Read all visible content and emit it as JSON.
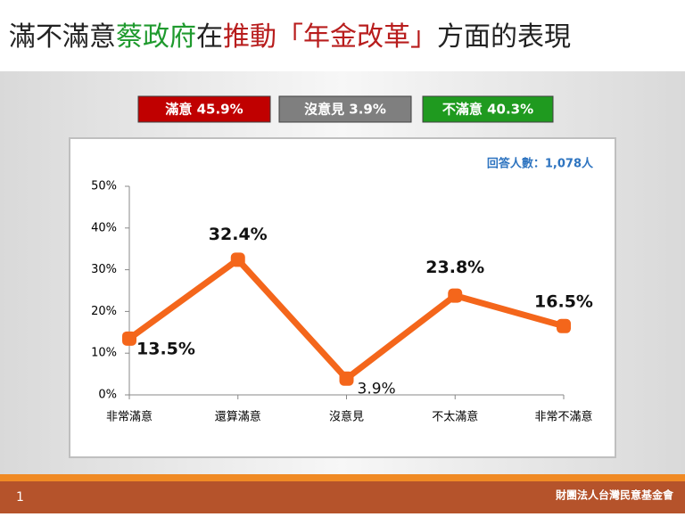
{
  "chart_data": {
    "type": "line",
    "title_parts": [
      {
        "text": "滿不滿意",
        "color": "#222222"
      },
      {
        "text": "蔡政府",
        "color": "#1f9a2e"
      },
      {
        "text": "在",
        "color": "#222222"
      },
      {
        "text": "推動「年金改革」",
        "color": "#b81d1d"
      },
      {
        "text": "方面的表現",
        "color": "#222222"
      }
    ],
    "summary": [
      {
        "text": "滿意 45.9%",
        "color": "#c00000"
      },
      {
        "text": "沒意見 3.9%",
        "color": "#7f7f7f"
      },
      {
        "text": "不滿意 40.3%",
        "color": "#1f9a1f"
      }
    ],
    "annotation": "回答人數：1,078人",
    "categories": [
      "非常滿意",
      "還算滿意",
      "沒意見",
      "不太滿意",
      "非常不滿意"
    ],
    "values": [
      13.5,
      32.4,
      3.9,
      23.8,
      16.5
    ],
    "value_labels": [
      "13.5%",
      "32.4%",
      "3.9%",
      "23.8%",
      "16.5%"
    ],
    "color": "#f4661b",
    "ylim": [
      0,
      50
    ],
    "yticks": [
      {
        "value": 0,
        "label": "0%"
      },
      {
        "value": 10,
        "label": "10%"
      },
      {
        "value": 20,
        "label": "20%"
      },
      {
        "value": 30,
        "label": "30%"
      },
      {
        "value": 40,
        "label": "40%"
      },
      {
        "value": 50,
        "label": "50%"
      }
    ],
    "grid": false,
    "page_number": "1",
    "footer": "財團法人台灣民意基金會"
  }
}
